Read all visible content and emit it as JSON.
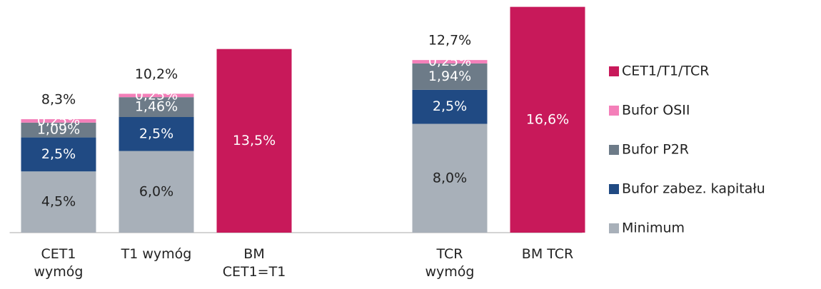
{
  "chart_data": {
    "type": "stacked_bar",
    "categories": [
      [
        "CET1",
        "wymóg"
      ],
      [
        "T1 wymóg"
      ],
      [
        "BM",
        "CET1=T1"
      ],
      null,
      [
        "TCR",
        "wymóg"
      ],
      [
        "BM TCR"
      ]
    ],
    "series": [
      {
        "name": "Minimum",
        "color": "#a8b0b9",
        "label_color": "#222222",
        "values": [
          4.5,
          6.0,
          null,
          null,
          8.0,
          null
        ],
        "value_labels": [
          "4,5%",
          "6,0%",
          null,
          null,
          "8,0%",
          null
        ]
      },
      {
        "name": "Bufor zabez. kapitału",
        "color": "#204a83",
        "label_color": "#ffffff",
        "values": [
          2.5,
          2.5,
          null,
          null,
          2.5,
          null
        ],
        "value_labels": [
          "2,5%",
          "2,5%",
          null,
          null,
          "2,5%",
          null
        ]
      },
      {
        "name": "Bufor P2R",
        "color": "#6d7b88",
        "label_color": "#ffffff",
        "values": [
          1.09,
          1.46,
          null,
          null,
          1.94,
          null
        ],
        "value_labels": [
          "1,09%",
          "1,46%",
          null,
          null,
          "1,94%",
          null
        ]
      },
      {
        "name": "Bufor OSII",
        "color": "#f47fb9",
        "label_color": "#ffffff",
        "values": [
          0.25,
          0.25,
          null,
          null,
          0.25,
          null
        ],
        "value_labels": [
          "0,25%",
          "0,25%",
          null,
          null,
          "0,25%",
          null
        ]
      },
      {
        "name": "CET1/T1/TCR",
        "color": "#c8195a",
        "label_color": "#ffffff",
        "values": [
          null,
          null,
          13.5,
          null,
          null,
          16.6
        ],
        "value_labels": [
          null,
          null,
          "13,5%",
          null,
          null,
          "16,6%"
        ]
      }
    ],
    "totals": [
      8.3,
      10.2,
      null,
      null,
      12.7,
      null
    ],
    "total_labels": [
      "8,3%",
      "10,2%",
      null,
      null,
      "12,7%",
      null
    ],
    "ylim": [
      0,
      17
    ]
  }
}
